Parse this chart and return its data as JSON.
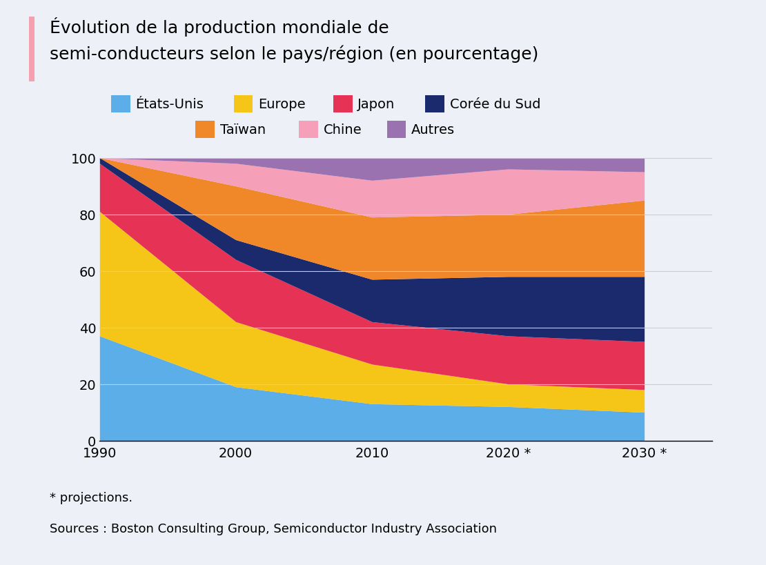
{
  "years": [
    1990,
    2000,
    2010,
    2020,
    2030
  ],
  "series_order": [
    "États-Unis",
    "Europe",
    "Japon",
    "Corée du Sud",
    "Taïwan",
    "Chine",
    "Autres"
  ],
  "series": {
    "États-Unis": [
      37,
      19,
      13,
      12,
      10
    ],
    "Europe": [
      44,
      23,
      14,
      8,
      8
    ],
    "Japon": [
      17,
      22,
      15,
      17,
      17
    ],
    "Corée du Sud": [
      2,
      7,
      15,
      21,
      23
    ],
    "Taïwan": [
      0,
      19,
      22,
      22,
      27
    ],
    "Chine": [
      0,
      8,
      13,
      16,
      10
    ],
    "Autres": [
      0,
      2,
      8,
      4,
      5
    ]
  },
  "colors": {
    "États-Unis": "#5baee8",
    "Europe": "#f5c518",
    "Japon": "#e63355",
    "Corée du Sud": "#1a2a6c",
    "Taïwan": "#f0882a",
    "Chine": "#f5a0b8",
    "Autres": "#9b72b0"
  },
  "title_line1": "Évolution de la production mondiale de",
  "title_line2": "semi-conducteurs selon le pays/région (en pourcentage)",
  "x_labels": [
    "1990",
    "2000",
    "2010",
    "2020 *",
    "2030 *"
  ],
  "footnote": "* projections.",
  "source": "Sources : Boston Consulting Group, Semiconductor Industry Association",
  "bg_color": "#edf1f7",
  "title_bar_color": "#f4a0b0",
  "legend_row1": [
    "États-Unis",
    "Europe",
    "Japon",
    "Corée du Sud"
  ],
  "legend_row2": [
    "Taïwan",
    "Chine",
    "Autres"
  ],
  "xlim_left": 1990,
  "xlim_right": 2035
}
